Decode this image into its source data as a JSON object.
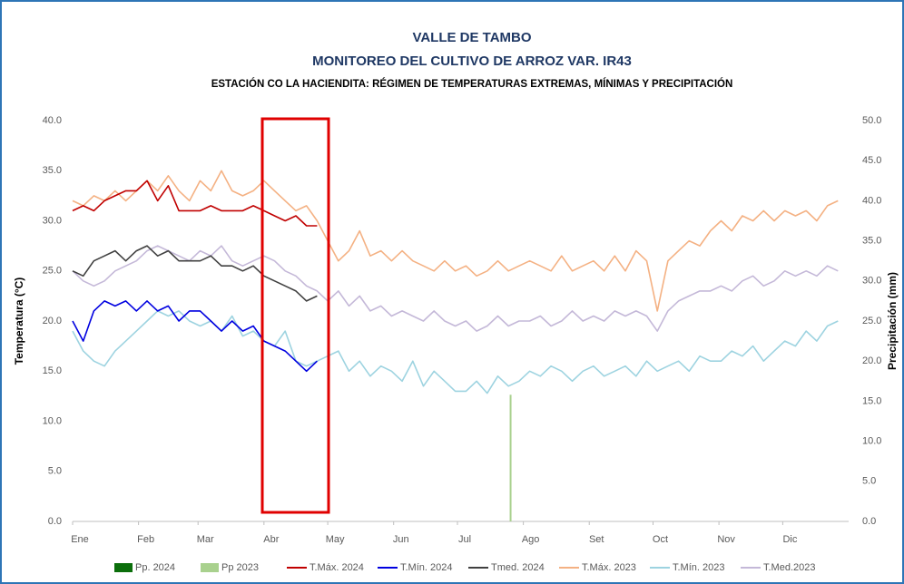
{
  "chart_data": {
    "type": "line",
    "title": "VALLE DE TAMBO",
    "subtitle": "MONITOREO DEL CULTIVO DE ARROZ VAR. IR43",
    "subtitle2": "ESTACIÓN CO LA HACIENDITA: RÉGIMEN DE TEMPERATURAS EXTREMAS, MÍNIMAS Y PRECIPITACIÓN",
    "y_label": "Temperatura (°C)",
    "y2_label": "Precipitación (mm)",
    "xlim": [
      1,
      366
    ],
    "xticks": [
      {
        "value": 1,
        "label": "Ene"
      },
      {
        "value": 32,
        "label": "Feb"
      },
      {
        "value": 60,
        "label": "Mar"
      },
      {
        "value": 91,
        "label": "Abr"
      },
      {
        "value": 121,
        "label": "May"
      },
      {
        "value": 152,
        "label": "Jun"
      },
      {
        "value": 182,
        "label": "Jul"
      },
      {
        "value": 213,
        "label": "Ago"
      },
      {
        "value": 244,
        "label": "Set"
      },
      {
        "value": 274,
        "label": "Oct"
      },
      {
        "value": 305,
        "label": "Nov"
      },
      {
        "value": 335,
        "label": "Dic"
      }
    ],
    "ylim": [
      0,
      40
    ],
    "yticks": [
      {
        "value": 0,
        "label": "0.0"
      },
      {
        "value": 5,
        "label": "5.0"
      },
      {
        "value": 10,
        "label": "10.0"
      },
      {
        "value": 15,
        "label": "15.0"
      },
      {
        "value": 20,
        "label": "20.0"
      },
      {
        "value": 25,
        "label": "25.0"
      },
      {
        "value": 30,
        "label": "30.0"
      },
      {
        "value": 35,
        "label": "35.0"
      },
      {
        "value": 40,
        "label": "40.0"
      }
    ],
    "y2lim": [
      0,
      50
    ],
    "y2ticks": [
      {
        "value": 0,
        "label": "0.0"
      },
      {
        "value": 5,
        "label": "5.0"
      },
      {
        "value": 10,
        "label": "10.0"
      },
      {
        "value": 15,
        "label": "15.0"
      },
      {
        "value": 20,
        "label": "20.0"
      },
      {
        "value": 25,
        "label": "25.0"
      },
      {
        "value": 30,
        "label": "30.0"
      },
      {
        "value": 35,
        "label": "35.0"
      },
      {
        "value": 40,
        "label": "40.0"
      },
      {
        "value": 45,
        "label": "45.0"
      },
      {
        "value": 50,
        "label": "50.0"
      }
    ],
    "grid": false,
    "legend": "bottom",
    "precip_series": [
      {
        "name": "Pp. 2024",
        "color": "#0b6e0b",
        "axis": "y2",
        "x": [],
        "values": []
      },
      {
        "name": "Pp 2023",
        "color": "#a9d18e",
        "axis": "y2",
        "x": [
          207
        ],
        "values": [
          15.8
        ]
      }
    ],
    "x": [
      1,
      6,
      11,
      16,
      21,
      26,
      31,
      36,
      41,
      46,
      51,
      56,
      61,
      66,
      71,
      76,
      81,
      86,
      91,
      96,
      101,
      106,
      111,
      116,
      121,
      126,
      131,
      136,
      141,
      146,
      151,
      156,
      161,
      166,
      171,
      176,
      181,
      186,
      191,
      196,
      201,
      206,
      211,
      216,
      221,
      226,
      231,
      236,
      241,
      246,
      251,
      256,
      261,
      266,
      271,
      276,
      281,
      286,
      291,
      296,
      301,
      306,
      311,
      316,
      321,
      326,
      331,
      336,
      341,
      346,
      351,
      356,
      361
    ],
    "series": [
      {
        "name": "T.Máx. 2024",
        "color": "#c00000",
        "values": [
          31,
          31.5,
          31,
          32,
          32.5,
          33,
          33,
          34,
          32,
          33.5,
          31,
          31,
          31,
          31.5,
          31,
          31,
          31,
          31.5,
          31,
          30.5,
          30,
          30.5,
          29.5,
          29.5,
          null,
          null,
          null,
          null,
          null,
          null,
          null,
          null,
          null,
          null,
          null,
          null,
          null,
          null,
          null,
          null,
          null,
          null,
          null,
          null,
          null,
          null,
          null,
          null,
          null,
          null,
          null,
          null,
          null,
          null,
          null,
          null,
          null,
          null,
          null,
          null,
          null,
          null,
          null,
          null,
          null,
          null,
          null,
          null,
          null,
          null,
          null,
          null,
          null
        ]
      },
      {
        "name": "T.Mín. 2024",
        "color": "#0000e0",
        "values": [
          20,
          18,
          21,
          22,
          21.5,
          22,
          21,
          22,
          21,
          21.5,
          20,
          21,
          21,
          20,
          19,
          20,
          19,
          19.5,
          18,
          17.5,
          17,
          16,
          15,
          16,
          null,
          null,
          null,
          null,
          null,
          null,
          null,
          null,
          null,
          null,
          null,
          null,
          null,
          null,
          null,
          null,
          null,
          null,
          null,
          null,
          null,
          null,
          null,
          null,
          null,
          null,
          null,
          null,
          null,
          null,
          null,
          null,
          null,
          null,
          null,
          null,
          null,
          null,
          null,
          null,
          null,
          null,
          null,
          null,
          null,
          null,
          null,
          null,
          null
        ]
      },
      {
        "name": "Tmed. 2024",
        "color": "#404040",
        "values": [
          25,
          24.5,
          26,
          26.5,
          27,
          26,
          27,
          27.5,
          26.5,
          27,
          26,
          26,
          26,
          26.5,
          25.5,
          25.5,
          25,
          25.5,
          24.5,
          24,
          23.5,
          23,
          22,
          22.5,
          null,
          null,
          null,
          null,
          null,
          null,
          null,
          null,
          null,
          null,
          null,
          null,
          null,
          null,
          null,
          null,
          null,
          null,
          null,
          null,
          null,
          null,
          null,
          null,
          null,
          null,
          null,
          null,
          null,
          null,
          null,
          null,
          null,
          null,
          null,
          null,
          null,
          null,
          null,
          null,
          null,
          null,
          null,
          null,
          null,
          null,
          null,
          null,
          null
        ]
      },
      {
        "name": "T.Máx. 2023",
        "color": "#f4b183",
        "values": [
          32,
          31.5,
          32.5,
          32,
          33,
          32,
          33,
          34,
          33,
          34.5,
          33,
          32,
          34,
          33,
          35,
          33,
          32.5,
          33,
          34,
          33,
          32,
          31,
          31.5,
          30,
          28,
          26,
          27,
          29,
          26.5,
          27,
          26,
          27,
          26,
          25.5,
          25,
          26,
          25,
          25.5,
          24.5,
          25,
          26,
          25,
          25.5,
          26,
          25.5,
          25,
          26.5,
          25,
          25.5,
          26,
          25,
          26.5,
          25,
          27,
          26,
          21,
          26,
          27,
          28,
          27.5,
          29,
          30,
          29,
          30.5,
          30,
          31,
          30,
          31,
          30.5,
          31,
          30,
          31.5,
          32
        ]
      },
      {
        "name": "T.Mín. 2023",
        "color": "#9dd3e0",
        "values": [
          19,
          17,
          16,
          15.5,
          17,
          18,
          19,
          20,
          21,
          20.5,
          21,
          20,
          19.5,
          20,
          19,
          20.5,
          18.5,
          19,
          18,
          17.5,
          19,
          16,
          15.5,
          16,
          16.5,
          17,
          15,
          16,
          14.5,
          15.5,
          15,
          14,
          16,
          13.5,
          15,
          14,
          13,
          13,
          14,
          12.8,
          14.5,
          13.5,
          14,
          15,
          14.5,
          15.5,
          15,
          14,
          15,
          15.5,
          14.5,
          15,
          15.5,
          14.5,
          16,
          15,
          15.5,
          16,
          15,
          16.5,
          16,
          16,
          17,
          16.5,
          17.5,
          16,
          17,
          18,
          17.5,
          19,
          18,
          19.5,
          20
        ]
      },
      {
        "name": "T.Med.2023",
        "color": "#c4b8d8",
        "values": [
          25,
          24,
          23.5,
          24,
          25,
          25.5,
          26,
          27,
          27.5,
          27,
          26.5,
          26,
          27,
          26.5,
          27.5,
          26,
          25.5,
          26,
          26.5,
          26,
          25,
          24.5,
          23.5,
          23,
          22,
          23,
          21.5,
          22.5,
          21,
          21.5,
          20.5,
          21,
          20.5,
          20,
          21,
          20,
          19.5,
          20,
          19,
          19.5,
          20.5,
          19.5,
          20,
          20,
          20.5,
          19.5,
          20,
          21,
          20,
          20.5,
          20,
          21,
          20.5,
          21,
          20.5,
          19,
          21,
          22,
          22.5,
          23,
          23,
          23.5,
          23,
          24,
          24.5,
          23.5,
          24,
          25,
          24.5,
          25,
          24.5,
          25.5,
          25
        ]
      }
    ]
  }
}
